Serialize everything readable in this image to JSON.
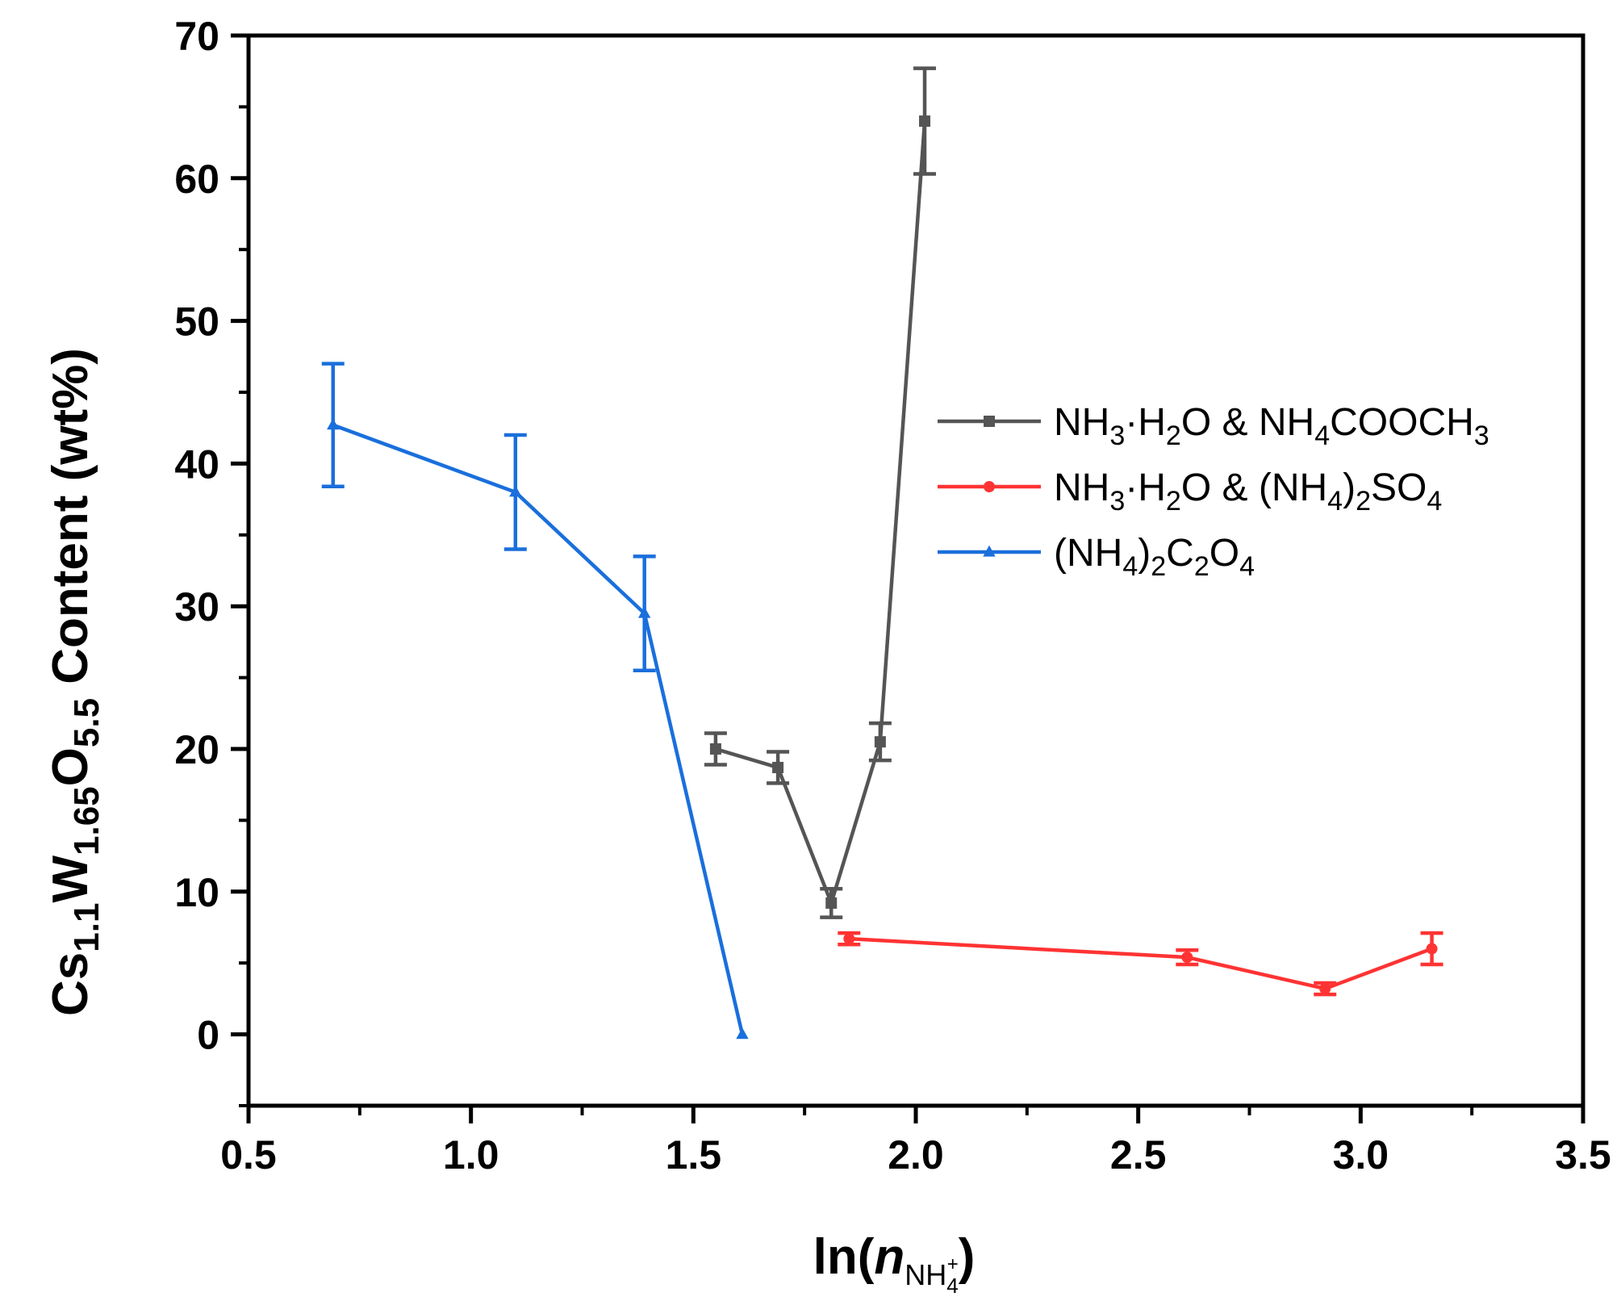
{
  "chart_data": {
    "type": "line",
    "title": "",
    "xlabel": "ln(n_NH4+)",
    "xlabel_parts": {
      "main": "ln(",
      "italic": "n",
      "sub": "NH",
      "sub4": "4",
      "sup": "+",
      "close": ")"
    },
    "ylabel": "Cs1.1W1.65O5.5 Content (wt%)",
    "ylabel_parts": {
      "cs": "Cs",
      "cs_sub": "1.1",
      "w": "W",
      "w_sub": "1.65",
      "o": "O",
      "o_sub": "5.5",
      "rest": " Content (wt%)"
    },
    "xlim": [
      0.5,
      3.5
    ],
    "ylim": [
      -5,
      70
    ],
    "xticks": [
      "0.5",
      "1.0",
      "1.5",
      "2.0",
      "2.5",
      "3.0",
      "3.5"
    ],
    "yticks": [
      "0",
      "10",
      "20",
      "30",
      "40",
      "50",
      "60",
      "70"
    ],
    "legend_position": "right",
    "series": [
      {
        "name": "NH3·H2O & NH4COOCH3",
        "legend_parts": [
          [
            "NH",
            ""
          ],
          [
            "3",
            "sub"
          ],
          [
            "·H",
            ""
          ],
          [
            "2",
            "sub"
          ],
          [
            "O & NH",
            ""
          ],
          [
            "4",
            "sub"
          ],
          [
            "COOCH",
            ""
          ],
          [
            "3",
            "sub"
          ]
        ],
        "color": "#555555",
        "marker": "square",
        "x": [
          1.55,
          1.69,
          1.81,
          1.92,
          2.02
        ],
        "y": [
          20.0,
          18.7,
          9.2,
          20.5,
          64.0
        ],
        "err": [
          1.1,
          1.1,
          1.0,
          1.3,
          3.7
        ]
      },
      {
        "name": "NH3·H2O & (NH4)2SO4",
        "legend_parts": [
          [
            "NH",
            ""
          ],
          [
            "3",
            "sub"
          ],
          [
            "·H",
            ""
          ],
          [
            "2",
            "sub"
          ],
          [
            "O & (NH",
            ""
          ],
          [
            "4",
            "sub"
          ],
          [
            ")",
            ""
          ],
          [
            "2",
            "sub"
          ],
          [
            "SO",
            ""
          ],
          [
            "4",
            "sub"
          ]
        ],
        "color": "#ff3333",
        "marker": "circle",
        "x": [
          1.85,
          2.61,
          2.92,
          3.16
        ],
        "y": [
          6.7,
          5.4,
          3.2,
          6.0
        ],
        "err": [
          0.4,
          0.5,
          0.4,
          1.1
        ]
      },
      {
        "name": "(NH4)2C2O4",
        "legend_parts": [
          [
            "(NH",
            ""
          ],
          [
            "4",
            "sub"
          ],
          [
            ")",
            ""
          ],
          [
            "2",
            "sub"
          ],
          [
            "C",
            ""
          ],
          [
            "2",
            "sub"
          ],
          [
            "O",
            ""
          ],
          [
            "4",
            "sub"
          ]
        ],
        "color": "#1a6fdc",
        "marker": "triangle",
        "x": [
          0.69,
          1.1,
          1.39,
          1.61
        ],
        "y": [
          42.7,
          38.0,
          29.5,
          0.0
        ],
        "err": [
          4.3,
          4.0,
          4.0,
          0.0
        ]
      }
    ]
  }
}
